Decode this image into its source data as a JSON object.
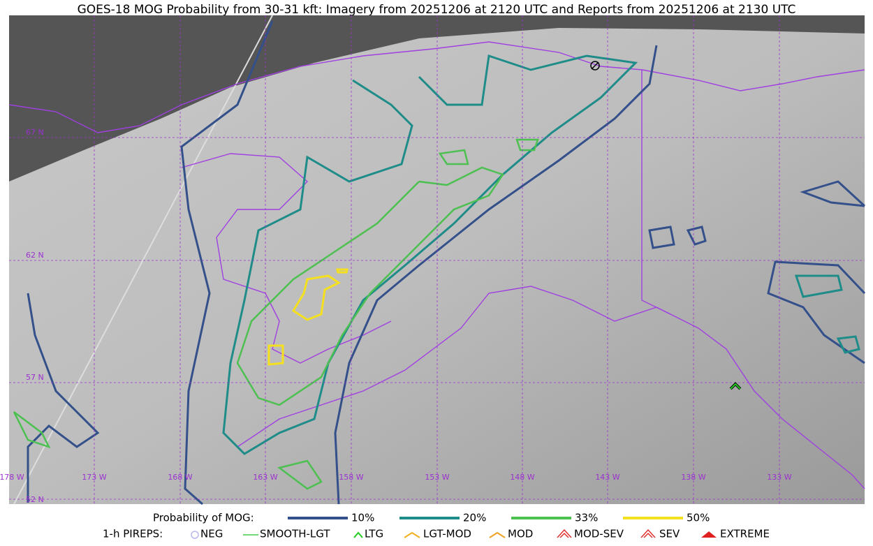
{
  "title": "GOES-18 MOG Probability from 30-31 kft: Imagery from 20251206 at 2120 UTC and Reports from 20251206 at 2130 UTC",
  "latitude_labels": [
    "67 N",
    "62 N",
    "57 N",
    "52 N"
  ],
  "longitude_labels": [
    "178 W",
    "173 W",
    "168 W",
    "163 W",
    "158 W",
    "153 W",
    "148 W",
    "143 W",
    "138 W",
    "133 W"
  ],
  "legend": {
    "probability": {
      "label": "Probability of MOG:",
      "items": [
        "10%",
        "20%",
        "33%",
        "50%"
      ]
    },
    "pireps": {
      "label": "1-h PIREPS:",
      "items": [
        "NEG",
        "SMOOTH-LGT",
        "LTG",
        "LGT-MOD",
        "MOD",
        "MOD-SEV",
        "SEV",
        "EXTREME"
      ]
    }
  }
}
